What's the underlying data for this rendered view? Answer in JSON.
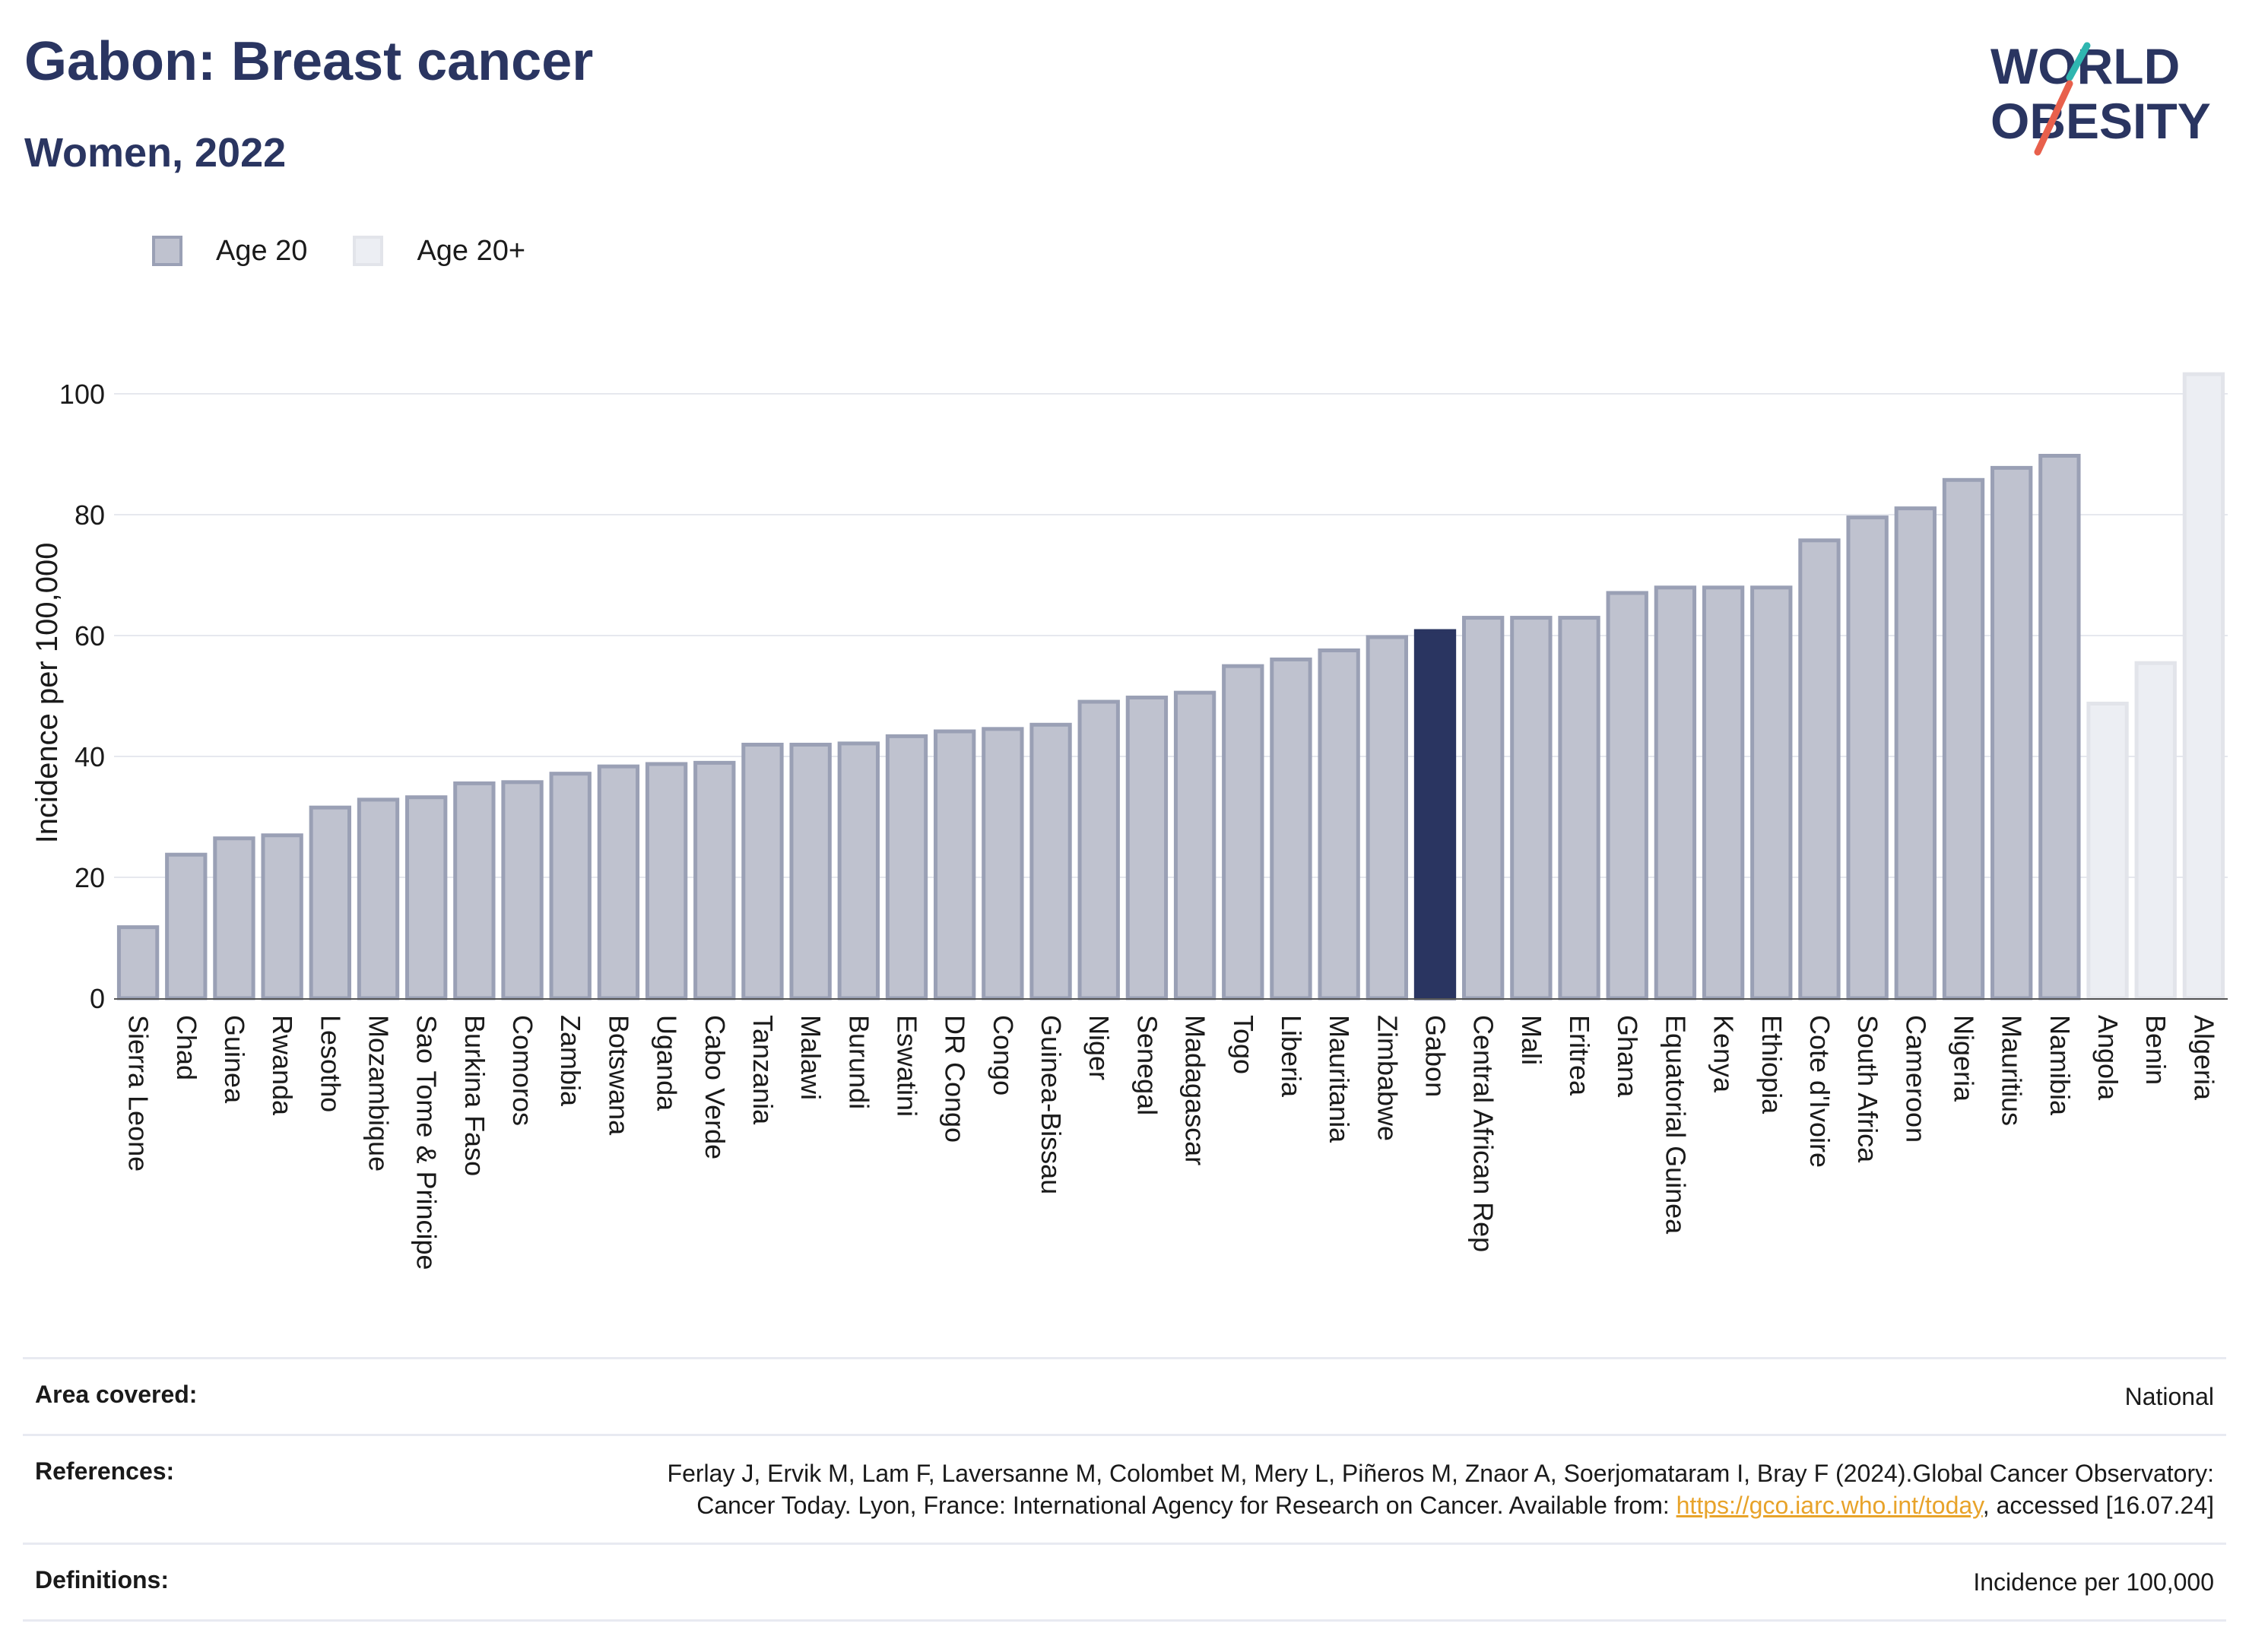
{
  "title": "Gabon: Breast cancer",
  "subtitle": "Women, 2022",
  "logo": {
    "line1": "WORLD",
    "line2": "OBESITY"
  },
  "legend": [
    {
      "label": "Age 20",
      "color": "#bfc2cf"
    },
    {
      "label": "Age 20+",
      "color": "#eceef3"
    }
  ],
  "colors": {
    "age20_fill": "#bfc2cf",
    "age20_stroke": "#9aa0b5",
    "age20plus_fill": "#eceef3",
    "age20plus_stroke": "#e2e4ea",
    "highlight": "#2a3561",
    "logo_teal": "#2fb6b0",
    "logo_red": "#e8604c"
  },
  "chart_data": {
    "type": "bar",
    "ylabel": "Incidence per 100,000",
    "xlabel": "",
    "ylim": [
      0,
      105
    ],
    "yticks": [
      0,
      20,
      40,
      60,
      80,
      100
    ],
    "grid": true,
    "legend_position": "top-left",
    "highlight": "Gabon",
    "categories": [
      "Sierra Leone",
      "Chad",
      "Guinea",
      "Rwanda",
      "Lesotho",
      "Mozambique",
      "Sao Tome & Principe",
      "Burkina Faso",
      "Comoros",
      "Zambia",
      "Botswana",
      "Uganda",
      "Cabo Verde",
      "Tanzania",
      "Malawi",
      "Burundi",
      "Eswatini",
      "DR Congo",
      "Congo",
      "Guinea-Bissau",
      "Niger",
      "Senegal",
      "Madagascar",
      "Togo",
      "Liberia",
      "Mauritania",
      "Zimbabwe",
      "Gabon",
      "Central African Rep",
      "Mali",
      "Eritrea",
      "Ghana",
      "Equatorial Guinea",
      "Kenya",
      "Ethiopia",
      "Cote d'Ivoire",
      "South Africa",
      "Cameroon",
      "Nigeria",
      "Mauritius",
      "Namibia",
      "Angola",
      "Benin",
      "Algeria"
    ],
    "values": [
      12,
      24,
      26.7,
      27.2,
      31.8,
      33.1,
      33.5,
      35.8,
      36,
      37.4,
      38.6,
      39,
      39.2,
      42.2,
      42.2,
      42.4,
      43.6,
      44.4,
      44.8,
      45.5,
      49.3,
      50,
      50.8,
      55.2,
      56.3,
      57.8,
      60,
      61,
      63.2,
      63.2,
      63.2,
      67.3,
      68.2,
      68.2,
      68.2,
      76,
      79.8,
      81.3,
      86,
      88,
      90,
      49,
      55.7,
      103.5
    ],
    "series_membership": [
      "Age 20",
      "Age 20",
      "Age 20",
      "Age 20",
      "Age 20",
      "Age 20",
      "Age 20",
      "Age 20",
      "Age 20",
      "Age 20",
      "Age 20",
      "Age 20",
      "Age 20",
      "Age 20",
      "Age 20",
      "Age 20",
      "Age 20",
      "Age 20",
      "Age 20",
      "Age 20",
      "Age 20",
      "Age 20",
      "Age 20",
      "Age 20",
      "Age 20",
      "Age 20",
      "Age 20",
      "Age 20",
      "Age 20",
      "Age 20",
      "Age 20",
      "Age 20",
      "Age 20",
      "Age 20",
      "Age 20",
      "Age 20",
      "Age 20",
      "Age 20",
      "Age 20",
      "Age 20",
      "Age 20",
      "Age 20+",
      "Age 20+",
      "Age 20+"
    ]
  },
  "footer": {
    "area_label": "Area covered:",
    "area_value": "National",
    "ref_label": "References:",
    "ref_text_1": "Ferlay J, Ervik M, Lam F, Laversanne M, Colombet M, Mery L, Piñeros M, Znaor A, Soerjomataram I, Bray F (2024).Global Cancer Observatory: Cancer Today. Lyon, France: International Agency for Research on Cancer. Available from: ",
    "ref_link": "https://gco.iarc.who.int/today",
    "ref_text_2": ", accessed [16.07.24]",
    "def_label": "Definitions:",
    "def_value": "Incidence per 100,000"
  }
}
